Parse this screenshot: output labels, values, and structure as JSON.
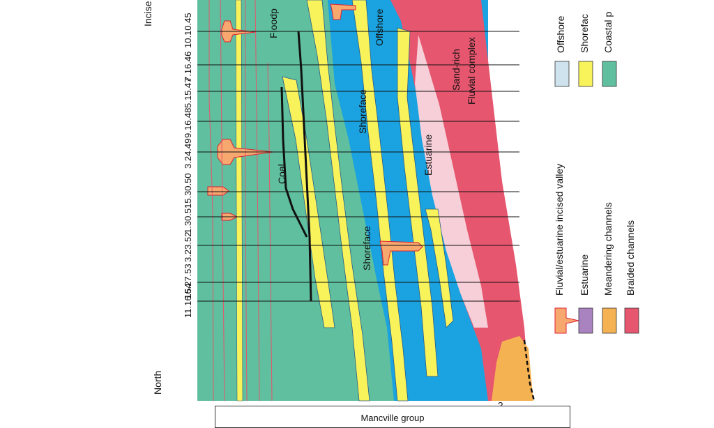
{
  "figure": {
    "orientation_label": "North",
    "top_left_label": "Incise",
    "group_label": "Mancville group"
  },
  "core_ids": [
    "10.10.45",
    "7.16.46",
    "5.15.47",
    "9.16.48",
    "3.24.49",
    "15.30.50",
    "1.30.51",
    "3.23.52",
    "16.27.53",
    "11.16.54"
  ],
  "section_labels": {
    "floodplain": "Floodp",
    "offshore": "Offshore",
    "shoreface_1": "Shoreface",
    "shoreface_2": "Shoreface",
    "coal": "Coal",
    "estuarine": "Estuarine",
    "sand_rich": "Sand-rich",
    "fluvial_complex": "Fluvial complex",
    "question": "?"
  },
  "legend": {
    "column1": [
      {
        "label": "Offshore",
        "color": "#cfe3ee"
      },
      {
        "label": "Shorefac",
        "color": "#f8f35b"
      },
      {
        "label": "Coastal p",
        "color": "#5fbf9e"
      }
    ],
    "column2": [
      {
        "label": "Fluvial/estuarine incised valley",
        "color": "#f7a86f",
        "icon": "incised-valley-icon"
      },
      {
        "label": "Estuarine",
        "color": "#a983c0"
      },
      {
        "label": "Meandering channels",
        "color": "#f5b253"
      },
      {
        "label": "Braided channels",
        "color": "#e6566e"
      }
    ]
  }
}
